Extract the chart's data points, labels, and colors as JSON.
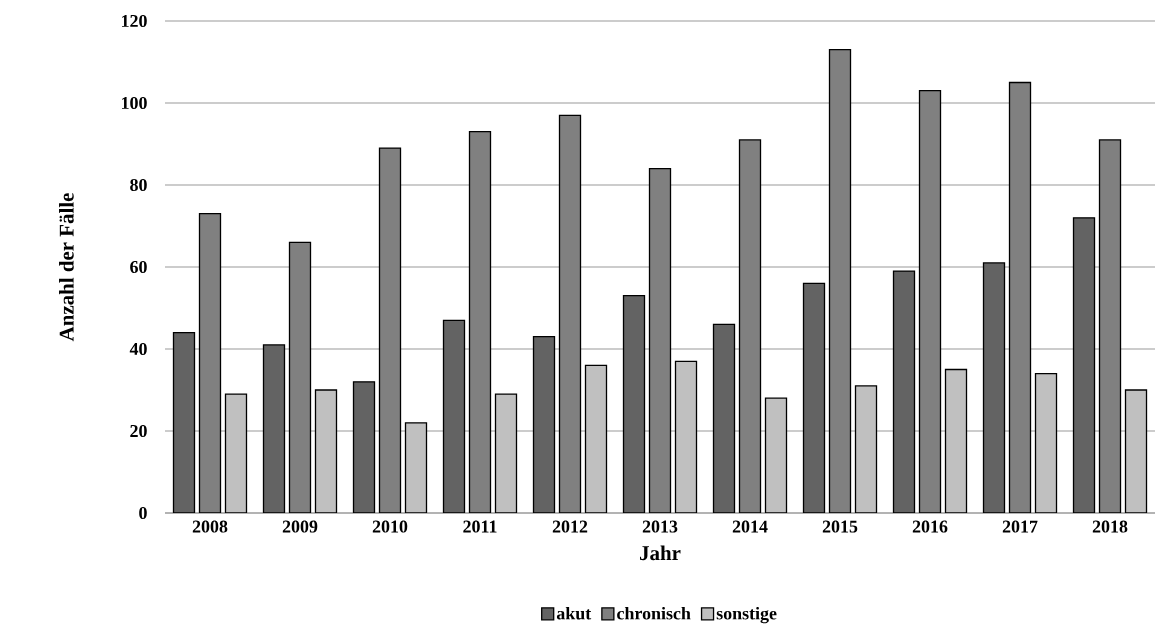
{
  "chart_data": {
    "type": "bar",
    "xlabel": "Jahr",
    "ylabel": "Anzahl der Fälle",
    "categories": [
      "2008",
      "2009",
      "2010",
      "2011",
      "2012",
      "2013",
      "2014",
      "2015",
      "2016",
      "2017",
      "2018"
    ],
    "series": [
      {
        "name": "akut",
        "color": "#636363",
        "values": [
          44,
          41,
          32,
          47,
          43,
          53,
          46,
          56,
          59,
          61,
          72
        ]
      },
      {
        "name": "chronisch",
        "color": "#808080",
        "values": [
          73,
          66,
          89,
          93,
          97,
          84,
          91,
          113,
          103,
          105,
          91
        ]
      },
      {
        "name": "sonstige",
        "color": "#c0c0c0",
        "values": [
          29,
          30,
          22,
          29,
          36,
          37,
          28,
          31,
          35,
          34,
          30
        ]
      }
    ],
    "ylim": [
      0,
      120
    ],
    "yticks": [
      0,
      20,
      40,
      60,
      80,
      100,
      120
    ],
    "grid": "y",
    "legend": "bottom"
  }
}
